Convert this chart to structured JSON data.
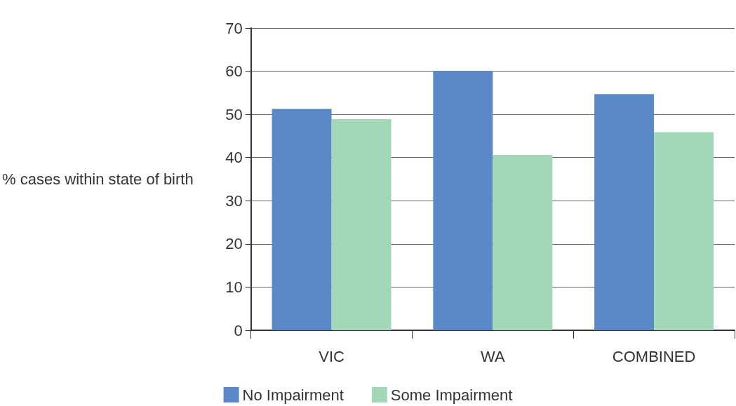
{
  "chart_data": {
    "type": "bar",
    "ylabel": "% cases within state of birth",
    "categories": [
      "VIC",
      "WA",
      "COMBINED"
    ],
    "series": [
      {
        "name": "No Impairment",
        "color": "#5b88c6",
        "values": [
          51.3,
          60.1,
          54.7
        ]
      },
      {
        "name": "Some Impairment",
        "color": "#a2d7b7",
        "values": [
          48.9,
          40.6,
          45.9
        ]
      }
    ],
    "ylim": [
      0,
      70
    ],
    "yticks": [
      0,
      10,
      20,
      30,
      40,
      50,
      60,
      70
    ],
    "grid": "y",
    "legend": "bottom"
  }
}
